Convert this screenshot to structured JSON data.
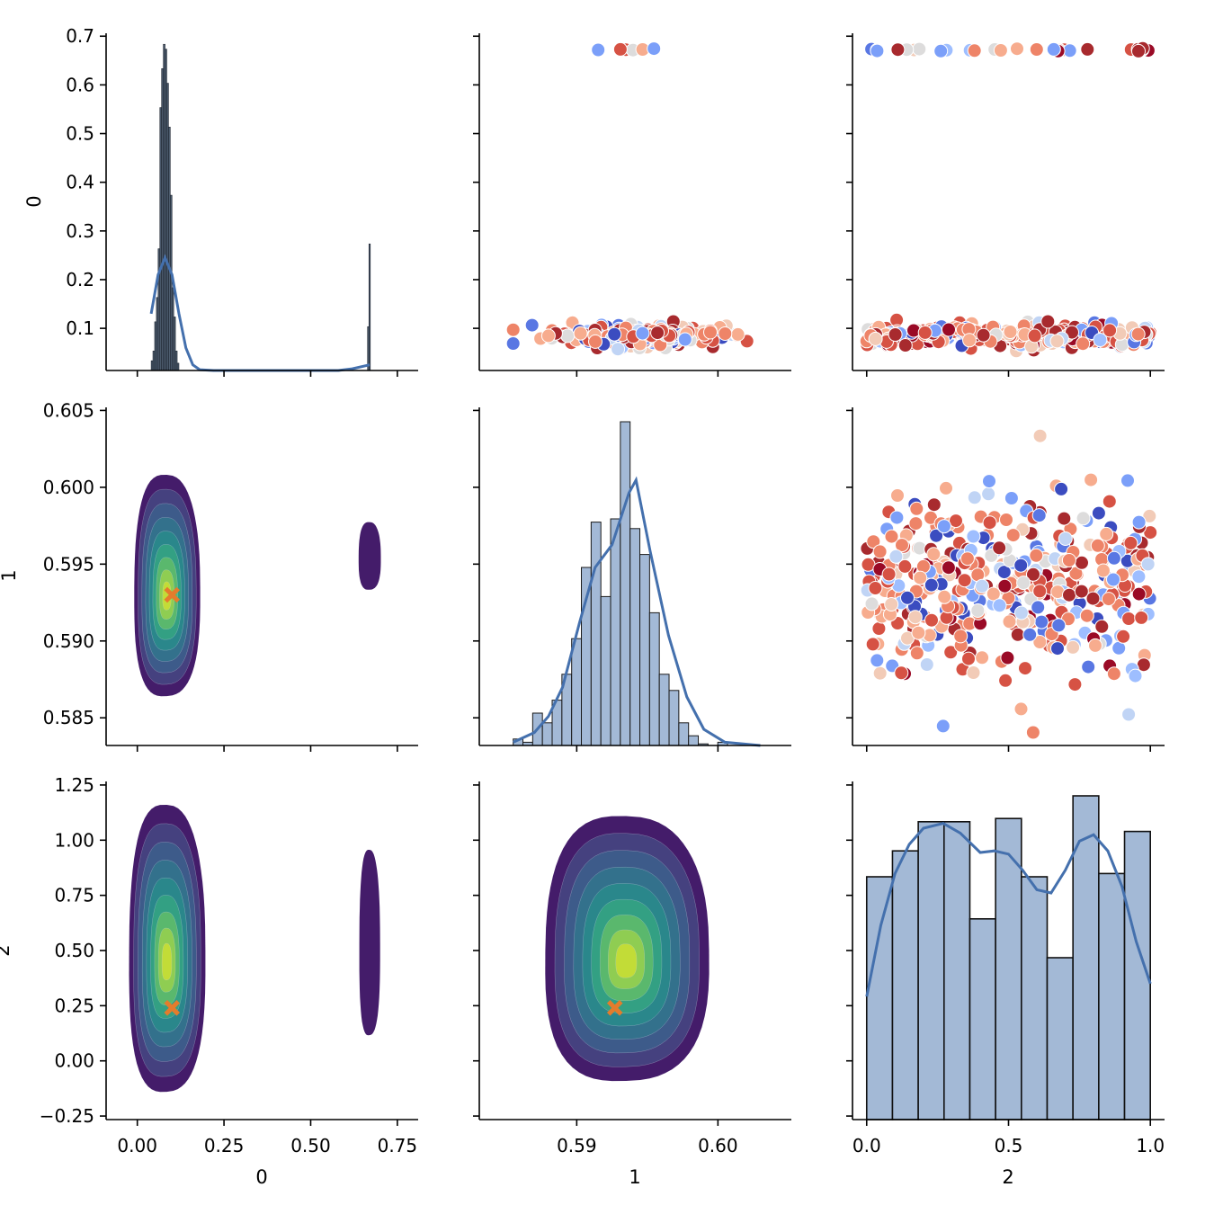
{
  "chart_data": {
    "type": "pairplot",
    "title": "",
    "variables": [
      "0",
      "1",
      "2"
    ],
    "colors": {
      "hist_fill": "#a3b9d6",
      "hist_fill_dark": "#3a4a5e",
      "kde_line": "#4470ad",
      "marker": "#e47c2c",
      "scatter_palette": "coolwarm",
      "contour_palette": "viridis"
    },
    "axes": {
      "x": [
        {
          "label": "0",
          "range": [
            -0.09,
            0.81
          ],
          "ticks": [
            0.0,
            0.25,
            0.5,
            0.75
          ],
          "tick_labels": [
            "0.00",
            "0.25",
            "0.50",
            "0.75"
          ]
        },
        {
          "label": "1",
          "range": [
            0.5831,
            0.6052
          ],
          "ticks": [
            0.59,
            0.6
          ],
          "tick_labels": [
            "0.59",
            "0.60"
          ]
        },
        {
          "label": "2",
          "range": [
            -0.05,
            1.05
          ],
          "ticks": [
            0.0,
            0.5,
            1.0
          ],
          "tick_labels": [
            "0.0",
            "0.5",
            "1.0"
          ]
        }
      ],
      "y": [
        {
          "label": "0",
          "range": [
            0.0134,
            0.706
          ],
          "ticks": [
            0.1,
            0.2,
            0.3,
            0.4,
            0.5,
            0.6,
            0.7
          ],
          "tick_labels": [
            "0.1",
            "0.2",
            "0.3",
            "0.4",
            "0.5",
            "0.6",
            "0.7"
          ]
        },
        {
          "label": "1",
          "range": [
            0.5832,
            0.6052
          ],
          "ticks": [
            0.585,
            0.59,
            0.595,
            0.6,
            0.605
          ],
          "tick_labels": [
            "0.585",
            "0.590",
            "0.595",
            "0.600",
            "0.605"
          ]
        },
        {
          "label": "2",
          "range": [
            -0.266,
            1.266
          ],
          "ticks": [
            -0.25,
            0.0,
            0.25,
            0.5,
            0.75,
            1.0,
            1.25
          ],
          "tick_labels": [
            "−0.25",
            "0.00",
            "0.25",
            "0.50",
            "0.75",
            "1.00",
            "1.25"
          ]
        }
      ]
    },
    "panels": {
      "hist_0": {
        "type": "bar",
        "description": "Narrow histogram of var 0 concentrated near 0.08 with small spike near 0.67",
        "bins": [
          {
            "x0": 0.04,
            "x1": 0.045,
            "h": 0.02
          },
          {
            "x0": 0.045,
            "x1": 0.05,
            "h": 0.04
          },
          {
            "x0": 0.05,
            "x1": 0.055,
            "h": 0.1
          },
          {
            "x0": 0.055,
            "x1": 0.06,
            "h": 0.15
          },
          {
            "x0": 0.06,
            "x1": 0.065,
            "h": 0.25
          },
          {
            "x0": 0.065,
            "x1": 0.07,
            "h": 0.54
          },
          {
            "x0": 0.07,
            "x1": 0.075,
            "h": 0.62
          },
          {
            "x0": 0.075,
            "x1": 0.08,
            "h": 0.67
          },
          {
            "x0": 0.08,
            "x1": 0.085,
            "h": 0.66
          },
          {
            "x0": 0.085,
            "x1": 0.09,
            "h": 0.59
          },
          {
            "x0": 0.09,
            "x1": 0.095,
            "h": 0.5
          },
          {
            "x0": 0.095,
            "x1": 0.1,
            "h": 0.36
          },
          {
            "x0": 0.1,
            "x1": 0.105,
            "h": 0.17
          },
          {
            "x0": 0.105,
            "x1": 0.11,
            "h": 0.11
          },
          {
            "x0": 0.11,
            "x1": 0.115,
            "h": 0.04
          },
          {
            "x0": 0.115,
            "x1": 0.12,
            "h": 0.015
          },
          {
            "x0": 0.664,
            "x1": 0.668,
            "h": 0.09
          },
          {
            "x0": 0.668,
            "x1": 0.672,
            "h": 0.26
          }
        ],
        "kde": [
          [
            0.04,
            0.13
          ],
          [
            0.06,
            0.21
          ],
          [
            0.08,
            0.245
          ],
          [
            0.1,
            0.21
          ],
          [
            0.12,
            0.13
          ],
          [
            0.14,
            0.06
          ],
          [
            0.16,
            0.025
          ],
          [
            0.18,
            0.015
          ],
          [
            0.22,
            0.0134
          ],
          [
            0.5,
            0.0134
          ],
          [
            0.58,
            0.0134
          ],
          [
            0.62,
            0.017
          ],
          [
            0.67,
            0.025
          ]
        ]
      },
      "scatter_1_0": {
        "type": "scatter",
        "x_var": "1",
        "y_var": "0",
        "clusters": [
          {
            "y_center": 0.085,
            "y_spread": 0.015,
            "x_min": 0.5855,
            "x_max": 0.6025,
            "n": 260
          },
          {
            "y_center": 0.672,
            "y_spread": 0.002,
            "x_min": 0.5915,
            "x_max": 0.5975,
            "n": 10
          }
        ]
      },
      "scatter_2_0": {
        "type": "scatter",
        "x_var": "2",
        "y_var": "0",
        "clusters": [
          {
            "y_center": 0.085,
            "y_spread": 0.015,
            "x_min": 0.0,
            "x_max": 1.0,
            "n": 320
          },
          {
            "y_center": 0.672,
            "y_spread": 0.002,
            "x_min": 0.0,
            "x_max": 1.0,
            "n": 30
          }
        ]
      },
      "kde_0_1": {
        "type": "contour",
        "x_var": "0",
        "y_var": "1",
        "blobs": [
          {
            "cx": 0.085,
            "cy": 0.5935,
            "rx": 0.095,
            "ry": 0.0072,
            "levels": 9
          },
          {
            "cx": 0.67,
            "cy": 0.5955,
            "rx": 0.032,
            "ry": 0.0022,
            "levels": 1
          }
        ],
        "marker": {
          "x": 0.1,
          "y": 0.593,
          "symbol": "X"
        }
      },
      "hist_1": {
        "type": "bar",
        "bin_start": 0.5855,
        "bin_width": 0.00069,
        "counts_rel": [
          0.02,
          0.01,
          0.1,
          0.07,
          0.14,
          0.22,
          0.33,
          0.55,
          0.69,
          0.46,
          0.7,
          1.0,
          0.67,
          0.59,
          0.41,
          0.22,
          0.17,
          0.07,
          0.03,
          0.005,
          0.0,
          0.01
        ],
        "kde": [
          [
            0.5855,
            0.01
          ],
          [
            0.587,
            0.04
          ],
          [
            0.588,
            0.09
          ],
          [
            0.589,
            0.18
          ],
          [
            0.5902,
            0.38
          ],
          [
            0.5913,
            0.55
          ],
          [
            0.5925,
            0.62
          ],
          [
            0.5937,
            0.78
          ],
          [
            0.5942,
            0.82
          ],
          [
            0.5952,
            0.6
          ],
          [
            0.5965,
            0.34
          ],
          [
            0.5978,
            0.15
          ],
          [
            0.599,
            0.05
          ],
          [
            0.6005,
            0.01
          ],
          [
            0.603,
            0.0
          ]
        ]
      },
      "scatter_2_1": {
        "type": "scatter",
        "x_var": "2",
        "y_var": "1",
        "cloud": {
          "y_center": 0.5935,
          "y_spread": 0.0028,
          "x_min": 0.0,
          "x_max": 1.0,
          "n": 420
        }
      },
      "kde_0_2": {
        "type": "contour",
        "x_var": "0",
        "y_var": "2",
        "blobs": [
          {
            "cx": 0.085,
            "cy": 0.5,
            "rx": 0.11,
            "ry": 0.65,
            "levels": 9
          },
          {
            "cx": 0.67,
            "cy": 0.53,
            "rx": 0.03,
            "ry": 0.42,
            "levels": 1
          }
        ],
        "marker": {
          "x": 0.1,
          "y": 0.24,
          "symbol": "X"
        }
      },
      "kde_1_2": {
        "type": "contour",
        "x_var": "1",
        "y_var": "2",
        "blobs": [
          {
            "cx": 0.5935,
            "cy": 0.5,
            "rx": 0.0058,
            "ry": 0.6,
            "levels": 9
          }
        ],
        "marker": {
          "x": 0.5927,
          "y": 0.24,
          "symbol": "X"
        }
      },
      "hist_2": {
        "type": "bar",
        "bin_start": 0.0,
        "bin_width": 0.0909,
        "counts_rel": [
          0.75,
          0.83,
          0.92,
          0.92,
          0.62,
          0.93,
          0.75,
          0.5,
          1.0,
          0.76,
          0.89
        ],
        "kde": [
          [
            0.0,
            0.38
          ],
          [
            0.05,
            0.6
          ],
          [
            0.1,
            0.76
          ],
          [
            0.15,
            0.85
          ],
          [
            0.2,
            0.9
          ],
          [
            0.27,
            0.915
          ],
          [
            0.33,
            0.885
          ],
          [
            0.4,
            0.825
          ],
          [
            0.45,
            0.83
          ],
          [
            0.5,
            0.82
          ],
          [
            0.55,
            0.77
          ],
          [
            0.6,
            0.71
          ],
          [
            0.65,
            0.7
          ],
          [
            0.7,
            0.77
          ],
          [
            0.75,
            0.86
          ],
          [
            0.8,
            0.88
          ],
          [
            0.85,
            0.83
          ],
          [
            0.9,
            0.72
          ],
          [
            0.95,
            0.55
          ],
          [
            1.0,
            0.42
          ]
        ]
      }
    }
  }
}
